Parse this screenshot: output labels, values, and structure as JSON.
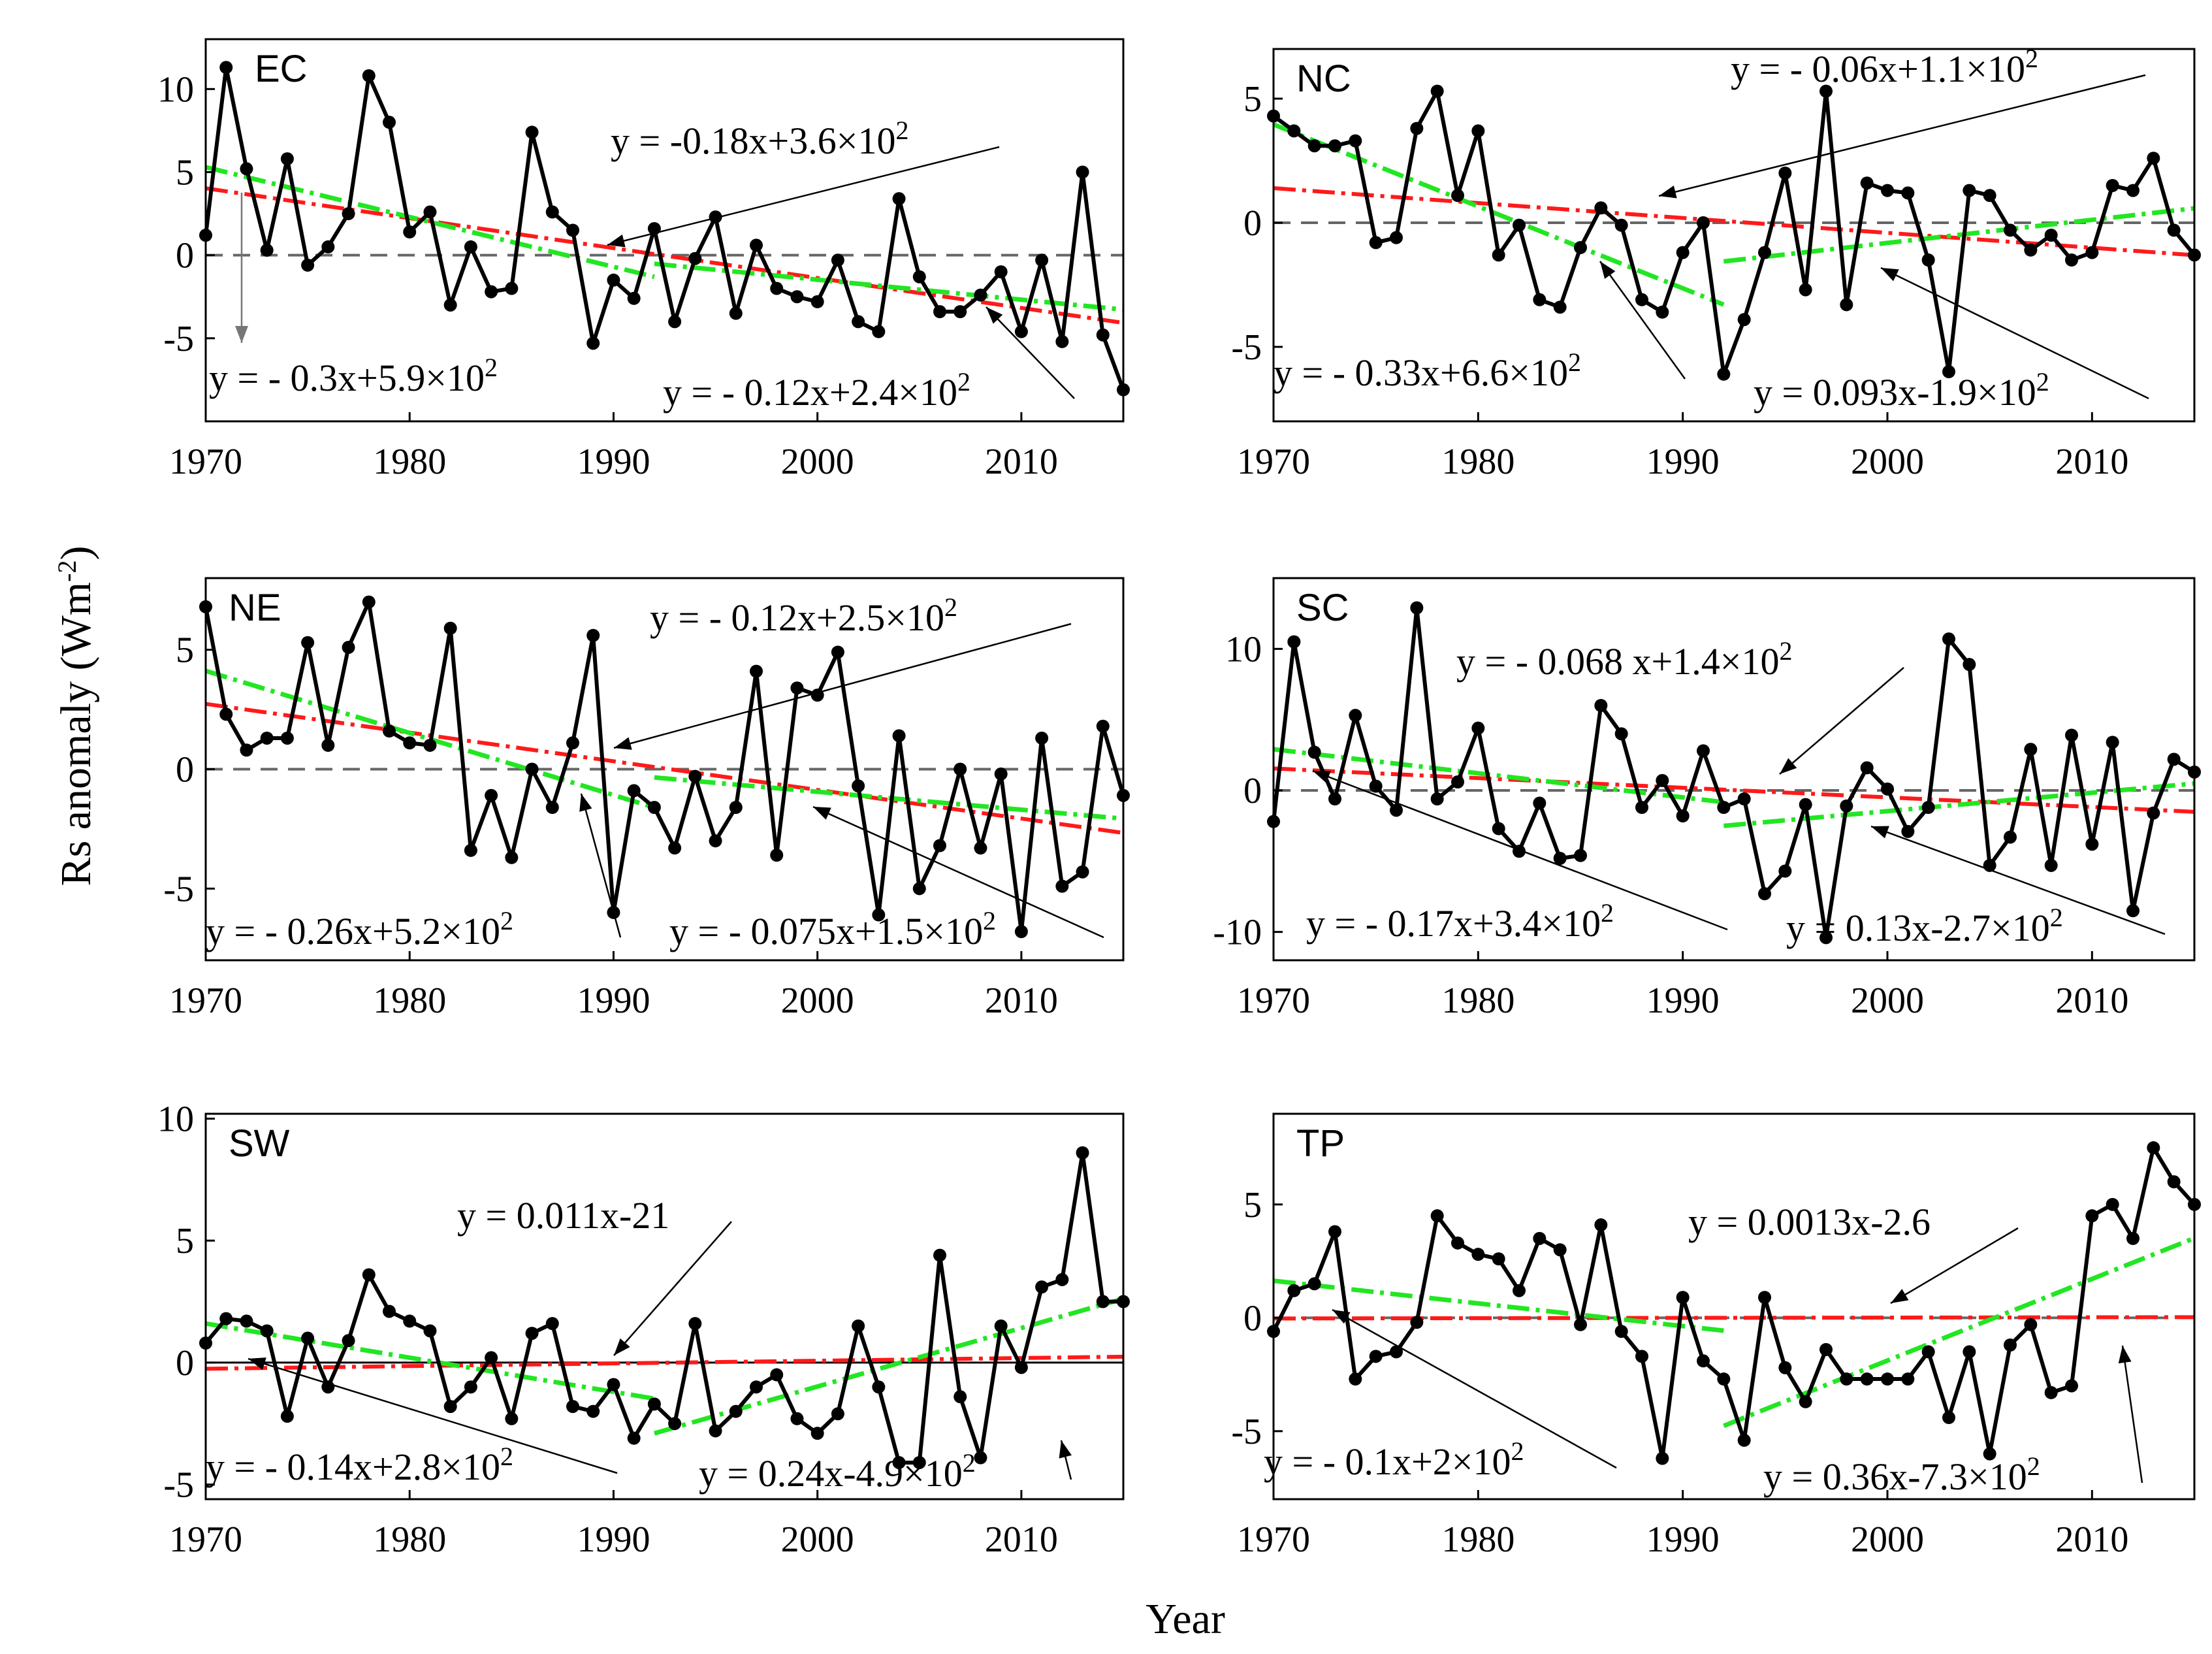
{
  "figure": {
    "ylabel": "Rs anomaly (Wm",
    "ylabel_sup": "-2",
    "ylabel_end": ")",
    "xlabel": "Year"
  },
  "chart_data": [
    {
      "type": "line",
      "region": "EC",
      "xlim": [
        1970,
        2015
      ],
      "ylim": [
        -10,
        13
      ],
      "yticks": [
        10,
        5,
        0,
        -5
      ],
      "xticks": [
        1970,
        1980,
        1990,
        2000,
        2010
      ],
      "zero_line": "dashed",
      "x": [
        1970,
        1971,
        1972,
        1973,
        1974,
        1975,
        1976,
        1977,
        1978,
        1979,
        1980,
        1981,
        1982,
        1983,
        1984,
        1985,
        1986,
        1987,
        1988,
        1989,
        1990,
        1991,
        1992,
        1993,
        1994,
        1995,
        1996,
        1997,
        1998,
        1999,
        2000,
        2001,
        2002,
        2003,
        2004,
        2005,
        2006,
        2007,
        2008,
        2009,
        2010,
        2011,
        2012,
        2013,
        2014,
        2015
      ],
      "y": [
        1.2,
        11.3,
        5.2,
        0.3,
        5.8,
        -0.6,
        0.5,
        2.5,
        10.8,
        8.0,
        1.4,
        2.6,
        -3.0,
        0.5,
        -2.2,
        -2.0,
        7.4,
        2.6,
        1.5,
        -5.3,
        -1.5,
        -2.6,
        1.6,
        -4.0,
        -0.2,
        2.3,
        -3.5,
        0.6,
        -2.0,
        -2.5,
        -2.8,
        -0.3,
        -4.0,
        -4.6,
        3.4,
        -1.3,
        -3.4,
        -3.4,
        -2.4,
        -1.0,
        -4.6,
        -0.3,
        -5.2,
        5.0,
        -4.8,
        -8.1
      ],
      "trends": [
        {
          "color": "#ff1a1a",
          "x": [
            1970,
            2015
          ],
          "slope": -0.18,
          "label": "y = -0.18x+3.6×10",
          "sup": "2"
        },
        {
          "color": "#22e622",
          "x": [
            1970,
            1992
          ],
          "slope": -0.3,
          "label": "y = - 0.3x+5.9×10",
          "sup": "2"
        },
        {
          "color": "#22e622",
          "x": [
            1992,
            2015
          ],
          "slope": -0.12,
          "label": "y = - 0.12x+2.4×10",
          "sup": "2"
        }
      ]
    },
    {
      "type": "line",
      "region": "NC",
      "xlim": [
        1970,
        2015
      ],
      "ylim": [
        -8,
        7
      ],
      "yticks": [
        5,
        0,
        -5
      ],
      "xticks": [
        1970,
        1980,
        1990,
        2000,
        2010
      ],
      "zero_line": "dashed",
      "x": [
        1970,
        1971,
        1972,
        1973,
        1974,
        1975,
        1976,
        1977,
        1978,
        1979,
        1980,
        1981,
        1982,
        1983,
        1984,
        1985,
        1986,
        1987,
        1988,
        1989,
        1990,
        1991,
        1992,
        1993,
        1994,
        1995,
        1996,
        1997,
        1998,
        1999,
        2000,
        2001,
        2002,
        2003,
        2004,
        2005,
        2006,
        2007,
        2008,
        2009,
        2010,
        2011,
        2012,
        2013,
        2014,
        2015
      ],
      "y": [
        4.3,
        3.7,
        3.1,
        3.1,
        3.3,
        -0.8,
        -0.6,
        3.8,
        5.3,
        1.1,
        3.7,
        -1.3,
        -0.1,
        -3.1,
        -3.4,
        -1.0,
        0.6,
        -0.1,
        -3.1,
        -3.6,
        -1.2,
        0.0,
        -6.1,
        -3.9,
        -1.2,
        2.0,
        -2.7,
        5.3,
        -3.3,
        1.6,
        1.3,
        1.2,
        -1.5,
        -6.0,
        1.3,
        1.1,
        -0.3,
        -1.1,
        -0.5,
        -1.5,
        -1.2,
        1.5,
        1.3,
        2.6,
        -0.3,
        -1.3
      ],
      "trends": [
        {
          "color": "#ff1a1a",
          "x": [
            1970,
            2015
          ],
          "slope": -0.06,
          "label": "y = - 0.06x+1.1×10",
          "sup": "2"
        },
        {
          "color": "#22e622",
          "x": [
            1970,
            1992
          ],
          "slope": -0.33,
          "label": "y = - 0.33x+6.6×10",
          "sup": "2"
        },
        {
          "color": "#22e622",
          "x": [
            1992,
            2015
          ],
          "slope": 0.093,
          "label": "y = 0.093x-1.9×10",
          "sup": "2"
        }
      ]
    },
    {
      "type": "line",
      "region": "NE",
      "xlim": [
        1970,
        2015
      ],
      "ylim": [
        -8,
        8
      ],
      "yticks": [
        5,
        0,
        -5
      ],
      "xticks": [
        1970,
        1980,
        1990,
        2000,
        2010
      ],
      "zero_line": "dashed",
      "x": [
        1970,
        1971,
        1972,
        1973,
        1974,
        1975,
        1976,
        1977,
        1978,
        1979,
        1980,
        1981,
        1982,
        1983,
        1984,
        1985,
        1986,
        1987,
        1988,
        1989,
        1990,
        1991,
        1992,
        1993,
        1994,
        1995,
        1996,
        1997,
        1998,
        1999,
        2000,
        2001,
        2002,
        2003,
        2004,
        2005,
        2006,
        2007,
        2008,
        2009,
        2010,
        2011,
        2012,
        2013,
        2014,
        2015
      ],
      "y": [
        6.8,
        2.3,
        0.8,
        1.3,
        1.3,
        5.3,
        1.0,
        5.1,
        7.0,
        1.6,
        1.1,
        1.0,
        5.9,
        -3.4,
        -1.1,
        -3.7,
        0.0,
        -1.6,
        1.1,
        5.6,
        -6.0,
        -0.9,
        -1.6,
        -3.3,
        -0.3,
        -3.0,
        -1.6,
        4.1,
        -3.6,
        3.4,
        3.1,
        4.9,
        -0.7,
        -6.1,
        1.4,
        -5.0,
        -3.2,
        0.0,
        -3.3,
        -0.2,
        -6.8,
        1.3,
        -4.9,
        -4.3,
        1.8,
        -1.1
      ],
      "trends": [
        {
          "color": "#ff1a1a",
          "x": [
            1970,
            2015
          ],
          "slope": -0.12,
          "label": "y = - 0.12x+2.5×10",
          "sup": "2"
        },
        {
          "color": "#22e622",
          "x": [
            1970,
            1992
          ],
          "slope": -0.26,
          "label": "y = - 0.26x+5.2×10",
          "sup": "2"
        },
        {
          "color": "#22e622",
          "x": [
            1992,
            2015
          ],
          "slope": -0.075,
          "label": "y = - 0.075x+1.5×10",
          "sup": "2"
        }
      ]
    },
    {
      "type": "line",
      "region": "SC",
      "xlim": [
        1970,
        2015
      ],
      "ylim": [
        -12,
        15
      ],
      "yticks": [
        10,
        0,
        -10
      ],
      "xticks": [
        1970,
        1980,
        1990,
        2000,
        2010
      ],
      "zero_line": "dashed",
      "x": [
        1970,
        1971,
        1972,
        1973,
        1974,
        1975,
        1976,
        1977,
        1978,
        1979,
        1980,
        1981,
        1982,
        1983,
        1984,
        1985,
        1986,
        1987,
        1988,
        1989,
        1990,
        1991,
        1992,
        1993,
        1994,
        1995,
        1996,
        1997,
        1998,
        1999,
        2000,
        2001,
        2002,
        2003,
        2004,
        2005,
        2006,
        2007,
        2008,
        2009,
        2010,
        2011,
        2012,
        2013,
        2014,
        2015
      ],
      "y": [
        -2.2,
        10.5,
        2.7,
        -0.6,
        5.3,
        0.3,
        -1.4,
        12.9,
        -0.6,
        0.6,
        4.4,
        -2.7,
        -4.3,
        -0.9,
        -4.8,
        -4.6,
        6.0,
        4.0,
        -1.2,
        0.7,
        -1.8,
        2.8,
        -1.2,
        -0.6,
        -7.3,
        -5.7,
        -1.0,
        -10.4,
        -1.1,
        1.6,
        0.1,
        -2.9,
        -1.2,
        10.7,
        8.9,
        -5.3,
        -3.3,
        2.9,
        -5.3,
        3.9,
        -3.8,
        3.4,
        -8.5,
        -1.6,
        2.2,
        1.3
      ],
      "trends": [
        {
          "color": "#ff1a1a",
          "x": [
            1970,
            2015
          ],
          "slope": -0.068,
          "label": "y = - 0.068 x+1.4×10",
          "sup": "2"
        },
        {
          "color": "#22e622",
          "x": [
            1970,
            1992
          ],
          "slope": -0.17,
          "label": "y = - 0.17x+3.4×10",
          "sup": "2"
        },
        {
          "color": "#22e622",
          "x": [
            1992,
            2015
          ],
          "slope": 0.13,
          "label": "y = 0.13x-2.7×10",
          "sup": "2"
        }
      ]
    },
    {
      "type": "line",
      "region": "SW",
      "xlim": [
        1970,
        2015
      ],
      "ylim": [
        -5.6,
        10.2
      ],
      "yticks": [
        10,
        5,
        0,
        -5
      ],
      "xticks": [
        1970,
        1980,
        1990,
        2000,
        2010
      ],
      "zero_line": "solid",
      "x": [
        1970,
        1971,
        1972,
        1973,
        1974,
        1975,
        1976,
        1977,
        1978,
        1979,
        1980,
        1981,
        1982,
        1983,
        1984,
        1985,
        1986,
        1987,
        1988,
        1989,
        1990,
        1991,
        1992,
        1993,
        1994,
        1995,
        1996,
        1997,
        1998,
        1999,
        2000,
        2001,
        2002,
        2003,
        2004,
        2005,
        2006,
        2007,
        2008,
        2009,
        2010,
        2011,
        2012,
        2013,
        2014,
        2015
      ],
      "y": [
        0.8,
        1.8,
        1.7,
        1.3,
        -2.2,
        1.0,
        -1.0,
        0.9,
        3.6,
        2.1,
        1.7,
        1.3,
        -1.8,
        -1.0,
        0.2,
        -2.3,
        1.2,
        1.6,
        -1.8,
        -2.0,
        -0.9,
        -3.1,
        -1.7,
        -2.5,
        1.6,
        -2.8,
        -2.0,
        -1.0,
        -0.5,
        -2.3,
        -2.9,
        -2.1,
        1.5,
        -1.0,
        -4.1,
        -4.1,
        4.4,
        -1.4,
        -3.9,
        1.5,
        -0.2,
        3.1,
        3.4,
        8.6,
        2.5,
        2.5
      ],
      "trends": [
        {
          "color": "#ff1a1a",
          "x": [
            1970,
            2015
          ],
          "slope": 0.011,
          "label": "y = 0.011x-21",
          "sup": ""
        },
        {
          "color": "#22e622",
          "x": [
            1970,
            1992
          ],
          "slope": -0.14,
          "label": "y = - 0.14x+2.8×10",
          "sup": "2"
        },
        {
          "color": "#22e622",
          "x": [
            1992,
            2015
          ],
          "slope": 0.24,
          "label": "y = 0.24x-4.9×10",
          "sup": "2"
        }
      ]
    },
    {
      "type": "line",
      "region": "TP",
      "xlim": [
        1970,
        2015
      ],
      "ylim": [
        -8,
        9
      ],
      "yticks": [
        5,
        0,
        -5
      ],
      "xticks": [
        1970,
        1980,
        1990,
        2000,
        2010
      ],
      "zero_line": "dashed",
      "x": [
        1970,
        1971,
        1972,
        1973,
        1974,
        1975,
        1976,
        1977,
        1978,
        1979,
        1980,
        1981,
        1982,
        1983,
        1984,
        1985,
        1986,
        1987,
        1988,
        1989,
        1990,
        1991,
        1992,
        1993,
        1994,
        1995,
        1996,
        1997,
        1998,
        1999,
        2000,
        2001,
        2002,
        2003,
        2004,
        2005,
        2006,
        2007,
        2008,
        2009,
        2010,
        2011,
        2012,
        2013,
        2014,
        2015
      ],
      "y": [
        -0.6,
        1.2,
        1.5,
        3.8,
        -2.7,
        -1.7,
        -1.5,
        -0.2,
        4.5,
        3.3,
        2.8,
        2.6,
        1.2,
        3.5,
        3.0,
        -0.3,
        4.1,
        -0.6,
        -1.7,
        -6.2,
        0.9,
        -1.9,
        -2.7,
        -5.4,
        0.9,
        -2.2,
        -3.7,
        -1.4,
        -2.7,
        -2.7,
        -2.7,
        -2.7,
        -1.5,
        -4.4,
        -1.5,
        -6.0,
        -1.2,
        -0.3,
        -3.3,
        -3.0,
        4.5,
        5.0,
        3.5,
        7.5,
        6.0,
        5.0
      ],
      "trends": [
        {
          "color": "#ff1a1a",
          "x": [
            1970,
            2015
          ],
          "slope": 0.0013,
          "label": "y = 0.0013x-2.6",
          "sup": ""
        },
        {
          "color": "#22e622",
          "x": [
            1970,
            1992
          ],
          "slope": -0.1,
          "label": "y = - 0.1x+2×10",
          "sup": "2"
        },
        {
          "color": "#22e622",
          "x": [
            1992,
            2015
          ],
          "slope": 0.36,
          "label": "y = 0.36x-7.3×10",
          "sup": "2"
        }
      ]
    }
  ]
}
